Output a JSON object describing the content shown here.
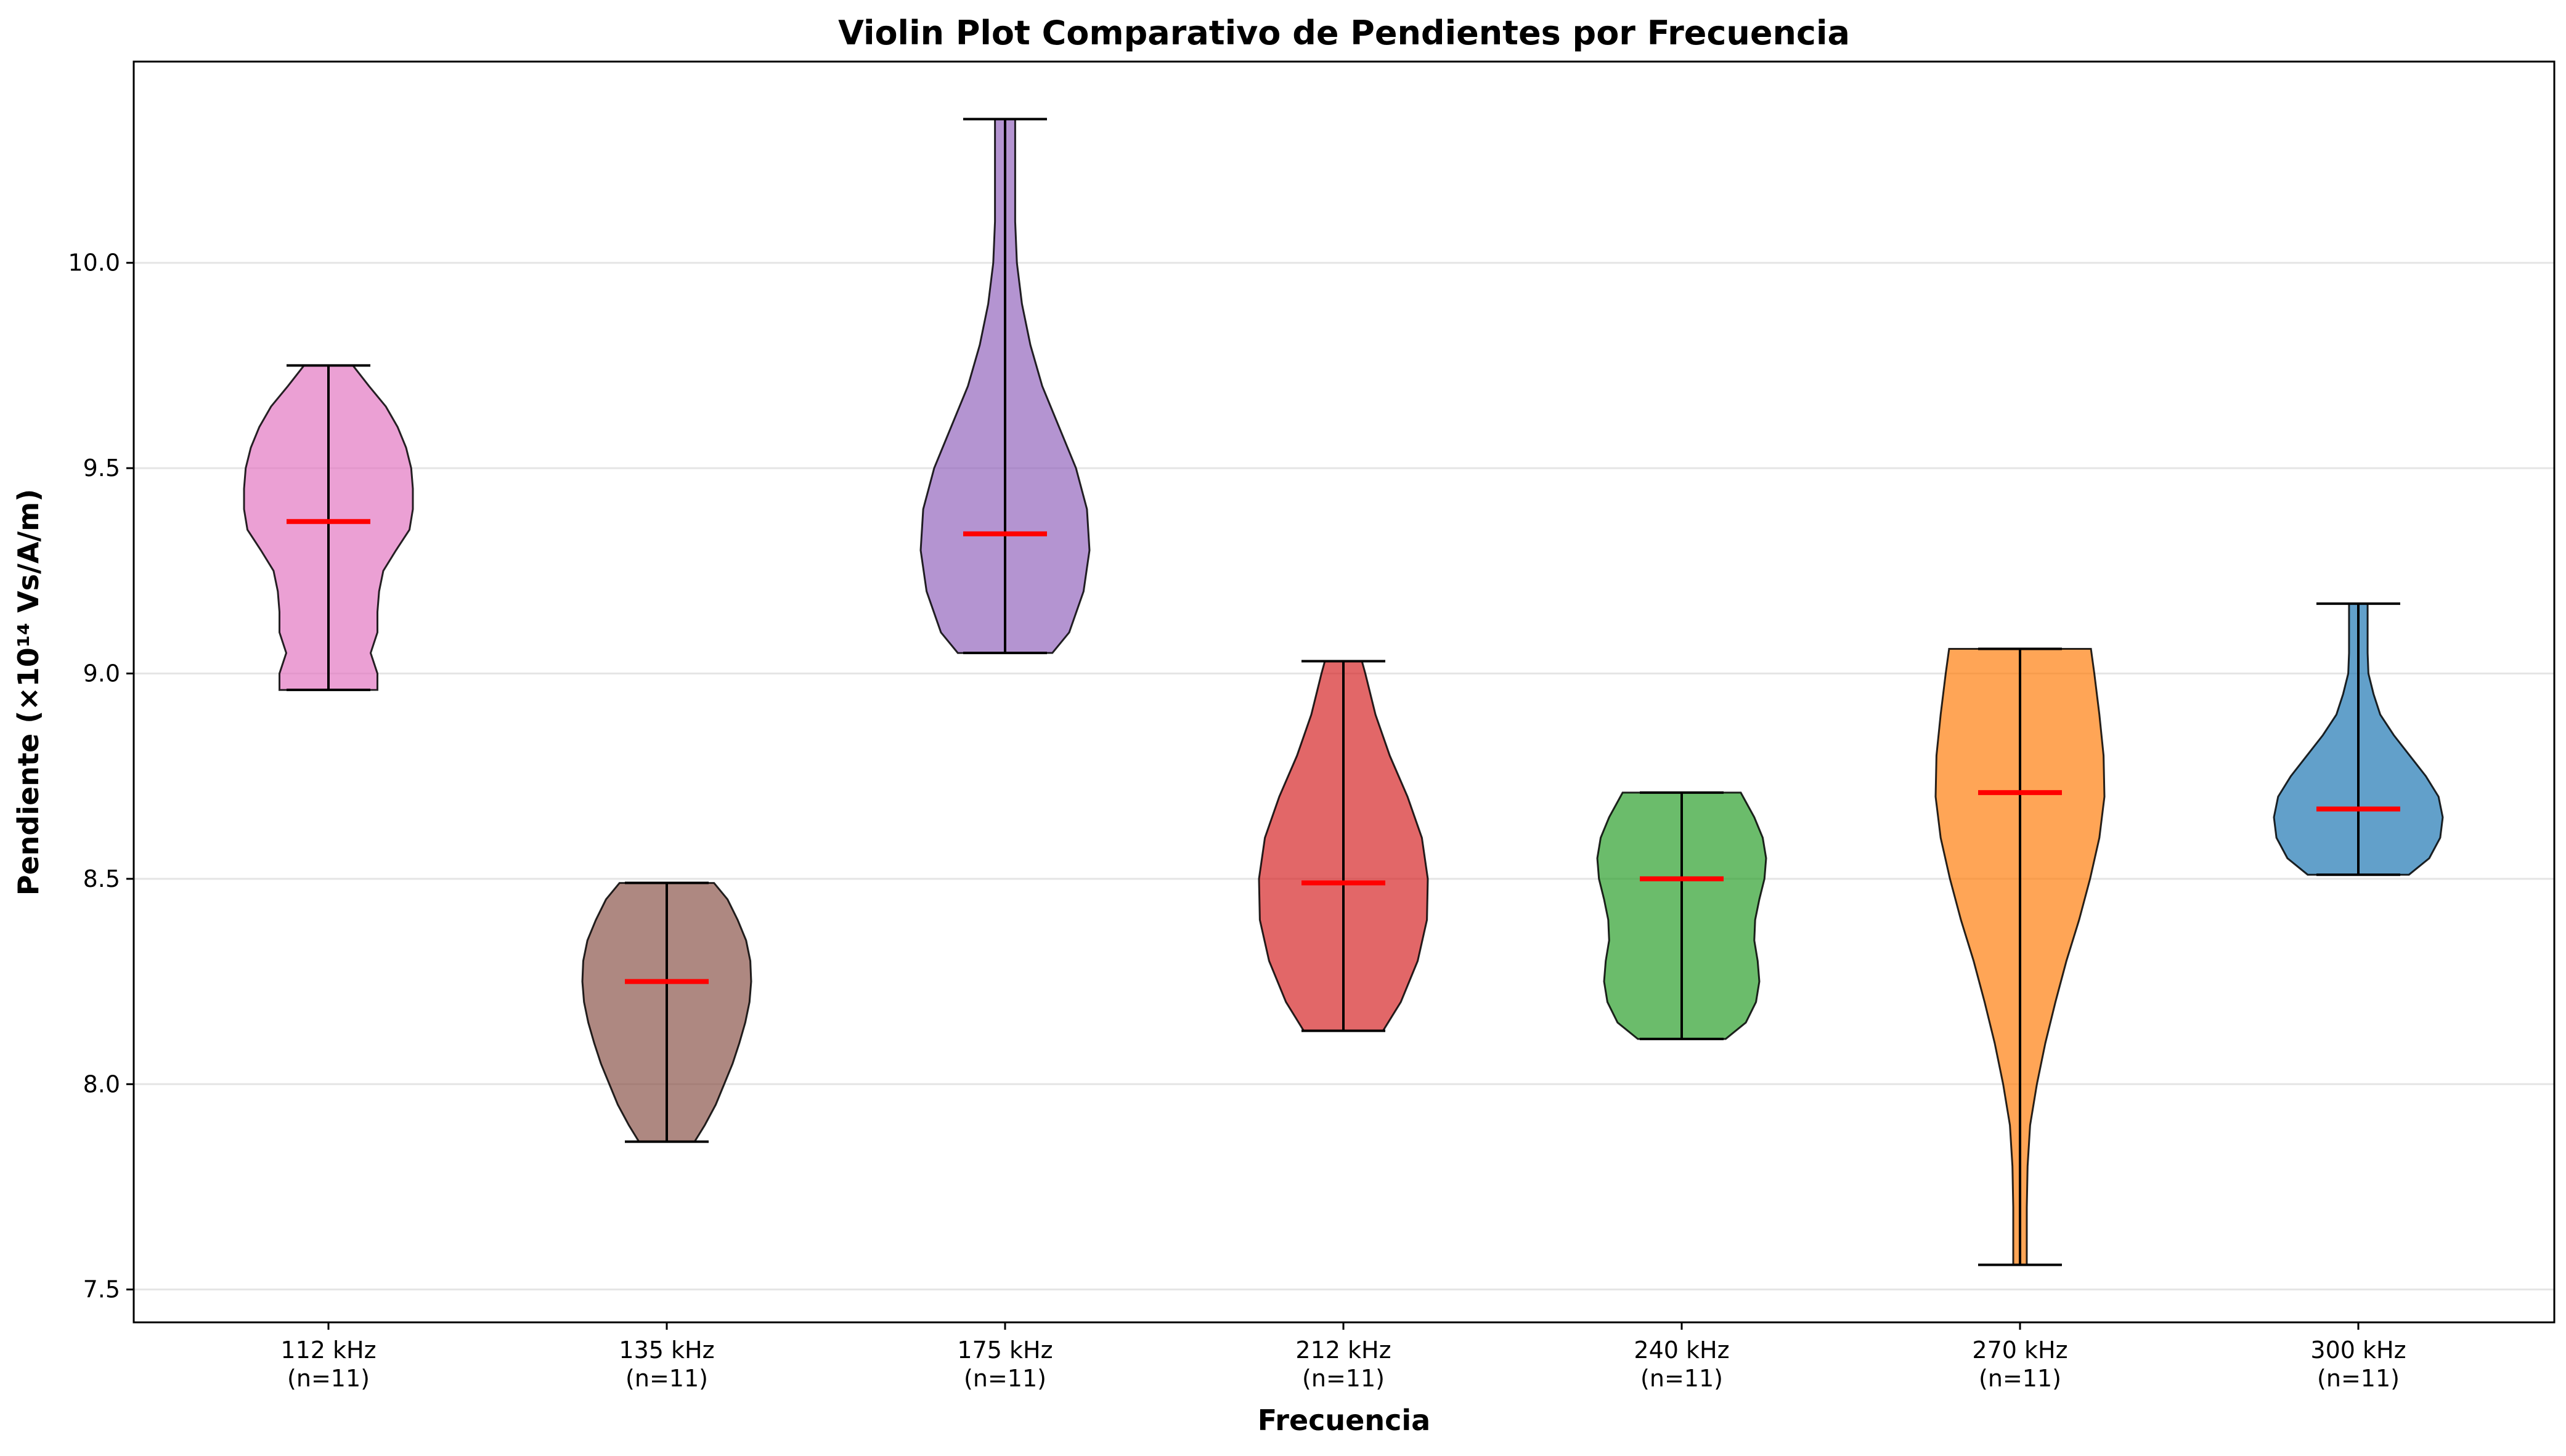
{
  "chart_data": {
    "type": "violin",
    "title": "Violin Plot Comparativo de Pendientes por Frecuencia",
    "xlabel": "Frecuencia",
    "ylabel": "Pendiente (×10¹⁴ Vs/A/m)",
    "ylim": [
      7.42,
      10.49
    ],
    "yticks": [
      7.5,
      8.0,
      8.5,
      9.0,
      9.5,
      10.0
    ],
    "ytick_labels": [
      "7.5",
      "8.0",
      "8.5",
      "9.0",
      "9.5",
      "10.0"
    ],
    "grid": "horizontal",
    "categories": [
      {
        "label": "112 kHz",
        "count_label": "(n=11)",
        "color": "#e377c2",
        "min": 8.96,
        "max": 9.75,
        "median": 9.37,
        "profile": [
          [
            8.96,
            0.58
          ],
          [
            9.0,
            0.58
          ],
          [
            9.05,
            0.5
          ],
          [
            9.1,
            0.58
          ],
          [
            9.15,
            0.58
          ],
          [
            9.2,
            0.6
          ],
          [
            9.25,
            0.65
          ],
          [
            9.3,
            0.8
          ],
          [
            9.35,
            0.96
          ],
          [
            9.4,
            1.0
          ],
          [
            9.45,
            1.0
          ],
          [
            9.5,
            0.98
          ],
          [
            9.55,
            0.92
          ],
          [
            9.6,
            0.82
          ],
          [
            9.65,
            0.68
          ],
          [
            9.7,
            0.48
          ],
          [
            9.75,
            0.29
          ]
        ]
      },
      {
        "label": "135 kHz",
        "count_label": "(n=11)",
        "color": "#8c564b",
        "min": 7.86,
        "max": 8.49,
        "median": 8.25,
        "profile": [
          [
            7.86,
            0.33
          ],
          [
            7.9,
            0.45
          ],
          [
            7.95,
            0.58
          ],
          [
            8.0,
            0.68
          ],
          [
            8.05,
            0.78
          ],
          [
            8.1,
            0.86
          ],
          [
            8.15,
            0.93
          ],
          [
            8.2,
            0.98
          ],
          [
            8.25,
            1.0
          ],
          [
            8.3,
            0.99
          ],
          [
            8.35,
            0.94
          ],
          [
            8.4,
            0.84
          ],
          [
            8.45,
            0.72
          ],
          [
            8.49,
            0.56
          ]
        ]
      },
      {
        "label": "175 kHz",
        "count_label": "(n=11)",
        "color": "#9467bd",
        "min": 9.05,
        "max": 10.35,
        "median": 9.34,
        "profile": [
          [
            9.05,
            0.56
          ],
          [
            9.1,
            0.76
          ],
          [
            9.2,
            0.93
          ],
          [
            9.3,
            1.0
          ],
          [
            9.4,
            0.97
          ],
          [
            9.5,
            0.84
          ],
          [
            9.6,
            0.64
          ],
          [
            9.7,
            0.44
          ],
          [
            9.8,
            0.3
          ],
          [
            9.9,
            0.2
          ],
          [
            10.0,
            0.14
          ],
          [
            10.1,
            0.12
          ],
          [
            10.2,
            0.12
          ],
          [
            10.3,
            0.12
          ],
          [
            10.35,
            0.12
          ]
        ]
      },
      {
        "label": "212 kHz",
        "count_label": "(n=11)",
        "color": "#d62728",
        "min": 8.13,
        "max": 9.03,
        "median": 8.49,
        "profile": [
          [
            8.13,
            0.47
          ],
          [
            8.2,
            0.68
          ],
          [
            8.3,
            0.88
          ],
          [
            8.4,
            0.99
          ],
          [
            8.5,
            1.0
          ],
          [
            8.6,
            0.93
          ],
          [
            8.7,
            0.76
          ],
          [
            8.8,
            0.55
          ],
          [
            8.9,
            0.38
          ],
          [
            9.0,
            0.26
          ],
          [
            9.03,
            0.22
          ]
        ]
      },
      {
        "label": "240 kHz",
        "count_label": "(n=11)",
        "color": "#2ca02c",
        "min": 8.11,
        "max": 8.71,
        "median": 8.5,
        "profile": [
          [
            8.11,
            0.52
          ],
          [
            8.15,
            0.76
          ],
          [
            8.2,
            0.88
          ],
          [
            8.25,
            0.92
          ],
          [
            8.3,
            0.9
          ],
          [
            8.35,
            0.86
          ],
          [
            8.4,
            0.87
          ],
          [
            8.45,
            0.92
          ],
          [
            8.5,
            0.98
          ],
          [
            8.55,
            1.0
          ],
          [
            8.6,
            0.96
          ],
          [
            8.65,
            0.86
          ],
          [
            8.71,
            0.7
          ]
        ]
      },
      {
        "label": "270 kHz",
        "count_label": "(n=11)",
        "color": "#ff7f0e",
        "min": 7.56,
        "max": 9.06,
        "median": 8.71,
        "profile": [
          [
            7.56,
            0.08
          ],
          [
            7.7,
            0.08
          ],
          [
            7.8,
            0.09
          ],
          [
            7.9,
            0.12
          ],
          [
            8.0,
            0.2
          ],
          [
            8.1,
            0.3
          ],
          [
            8.2,
            0.42
          ],
          [
            8.3,
            0.55
          ],
          [
            8.4,
            0.7
          ],
          [
            8.5,
            0.83
          ],
          [
            8.6,
            0.94
          ],
          [
            8.7,
            1.0
          ],
          [
            8.8,
            0.99
          ],
          [
            8.9,
            0.94
          ],
          [
            9.0,
            0.88
          ],
          [
            9.06,
            0.84
          ]
        ]
      },
      {
        "label": "300 kHz",
        "count_label": "(n=11)",
        "color": "#1f77b4",
        "min": 8.51,
        "max": 9.17,
        "median": 8.67,
        "profile": [
          [
            8.51,
            0.6
          ],
          [
            8.55,
            0.84
          ],
          [
            8.6,
            0.97
          ],
          [
            8.65,
            1.0
          ],
          [
            8.7,
            0.95
          ],
          [
            8.75,
            0.8
          ],
          [
            8.8,
            0.61
          ],
          [
            8.85,
            0.42
          ],
          [
            8.9,
            0.26
          ],
          [
            8.95,
            0.18
          ],
          [
            9.0,
            0.12
          ],
          [
            9.05,
            0.11
          ],
          [
            9.1,
            0.11
          ],
          [
            9.17,
            0.11
          ]
        ]
      }
    ]
  }
}
